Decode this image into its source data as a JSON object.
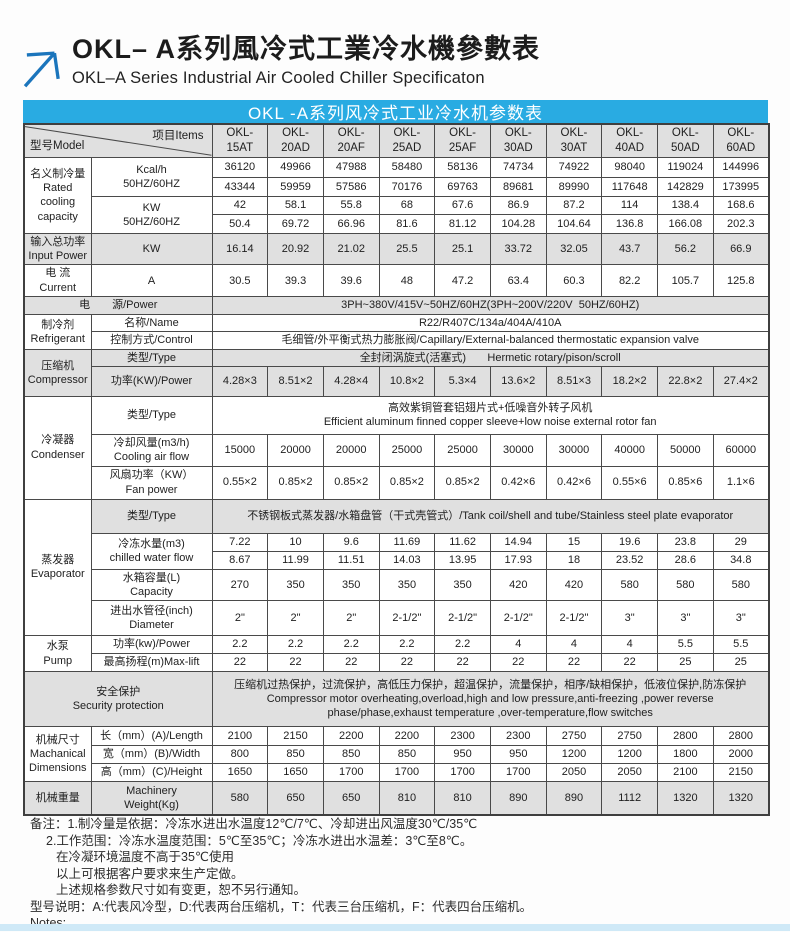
{
  "page": {
    "title_zh": "OKL– A系列風冷式工業冷水機參數表",
    "title_en": "OKL–A Series Industrial Air Cooled Chiller Specificaton",
    "accent_blue": "#29abe2",
    "arrow_blue": "#1b75bc",
    "cell_gray": "#e0e0e0",
    "bottom_bar_color": "#cfe9f7",
    "logo_icon": "arrow-up-right-icon"
  },
  "table": {
    "banner": "OKL -A系列风冷式工业冷水机参数表",
    "corner": {
      "model": "型号Model",
      "items": "项目Items"
    },
    "models": [
      "OKL-15AT",
      "OKL-20AD",
      "OKL-20AF",
      "OKL-25AD",
      "OKL-25AF",
      "OKL-30AD",
      "OKL-30AT",
      "OKL-40AD",
      "OKL-50AD",
      "OKL-60AD"
    ],
    "rows": [
      {
        "h": 30,
        "c": [
          {
            "corner": true,
            "cs": 2,
            "g": 1
          },
          {
            "t": "OKL-\n15AT",
            "k": "m",
            "g": 1
          },
          {
            "t": "OKL-\n20AD",
            "k": "m",
            "g": 1
          },
          {
            "t": "OKL-\n20AF",
            "k": "m",
            "g": 1
          },
          {
            "t": "OKL-\n25AD",
            "k": "m",
            "g": 1
          },
          {
            "t": "OKL-\n25AF",
            "k": "m",
            "g": 1
          },
          {
            "t": "OKL-\n30AD",
            "k": "m",
            "g": 1
          },
          {
            "t": "OKL-\n30AT",
            "k": "m",
            "g": 1
          },
          {
            "t": "OKL-\n40AD",
            "k": "m",
            "g": 1
          },
          {
            "t": "OKL-\n50AD",
            "k": "m",
            "g": 1
          },
          {
            "t": "OKL-\n60AD",
            "k": "m",
            "g": 1
          }
        ]
      },
      {
        "h": 20,
        "c": [
          {
            "t": "名义制冷量\nRated\ncooling\ncapacity",
            "k": "l",
            "rs": 4
          },
          {
            "t": "Kcal/h\n50HZ/60HZ",
            "k": "l",
            "rs": 2
          },
          {
            "t": "36120"
          },
          {
            "t": "49966"
          },
          {
            "t": "47988"
          },
          {
            "t": "58480"
          },
          {
            "t": "58136"
          },
          {
            "t": "74734"
          },
          {
            "t": "74922"
          },
          {
            "t": "98040"
          },
          {
            "t": "119024"
          },
          {
            "t": "144996"
          }
        ]
      },
      {
        "h": 19,
        "c": [
          {
            "t": "43344"
          },
          {
            "t": "59959"
          },
          {
            "t": "57586"
          },
          {
            "t": "70176"
          },
          {
            "t": "69763"
          },
          {
            "t": "89681"
          },
          {
            "t": "89990"
          },
          {
            "t": "117648"
          },
          {
            "t": "142829"
          },
          {
            "t": "173995"
          }
        ]
      },
      {
        "h": 18,
        "c": [
          {
            "t": "KW\n50HZ/60HZ",
            "k": "l",
            "rs": 2
          },
          {
            "t": "42"
          },
          {
            "t": "58.1"
          },
          {
            "t": "55.8"
          },
          {
            "t": "68"
          },
          {
            "t": "67.6"
          },
          {
            "t": "86.9"
          },
          {
            "t": "87.2"
          },
          {
            "t": "114"
          },
          {
            "t": "138.4"
          },
          {
            "t": "168.6"
          }
        ]
      },
      {
        "h": 19,
        "c": [
          {
            "t": "50.4"
          },
          {
            "t": "69.72"
          },
          {
            "t": "66.96"
          },
          {
            "t": "81.6"
          },
          {
            "t": "81.12"
          },
          {
            "t": "104.28"
          },
          {
            "t": "104.64"
          },
          {
            "t": "136.8"
          },
          {
            "t": "166.08"
          },
          {
            "t": "202.3"
          }
        ]
      },
      {
        "h": 30,
        "c": [
          {
            "t": "输入总功率\nInput Power",
            "k": "l",
            "g": 1
          },
          {
            "t": "KW",
            "k": "l",
            "g": 1
          },
          {
            "t": "16.14",
            "g": 1
          },
          {
            "t": "20.92",
            "g": 1
          },
          {
            "t": "21.02",
            "g": 1
          },
          {
            "t": "25.5",
            "g": 1
          },
          {
            "t": "25.1",
            "g": 1
          },
          {
            "t": "33.72",
            "g": 1
          },
          {
            "t": "32.05",
            "g": 1
          },
          {
            "t": "43.7",
            "g": 1
          },
          {
            "t": "56.2",
            "g": 1
          },
          {
            "t": "66.9",
            "g": 1
          }
        ]
      },
      {
        "h": 30,
        "c": [
          {
            "t": "电 流\nCurrent",
            "k": "l"
          },
          {
            "t": "A",
            "k": "l"
          },
          {
            "t": "30.5"
          },
          {
            "t": "39.3"
          },
          {
            "t": "39.6"
          },
          {
            "t": "48"
          },
          {
            "t": "47.2"
          },
          {
            "t": "63.4"
          },
          {
            "t": "60.3"
          },
          {
            "t": "82.2"
          },
          {
            "t": "105.7"
          },
          {
            "t": "125.8"
          }
        ]
      },
      {
        "h": 18,
        "c": [
          {
            "t": "电　　源/Power",
            "k": "l",
            "cs": 2,
            "g": 1
          },
          {
            "t": "3PH~380V/415V~50HZ/60HZ(3PH~200V/220V  50HZ/60HZ)",
            "cs": 10,
            "g": 1
          }
        ]
      },
      {
        "h": 17,
        "c": [
          {
            "t": "制冷剂\nRefrigerant",
            "k": "l",
            "rs": 2
          },
          {
            "t": "名称/Name",
            "k": "l"
          },
          {
            "t": "R22/R407C/134a/404A/410A",
            "cs": 10
          }
        ]
      },
      {
        "h": 17,
        "c": [
          {
            "t": "控制方式/Control",
            "k": "l"
          },
          {
            "t": "毛细管/外平衡式热力膨胀阀/Capillary/External-balanced thermostatic expansion valve",
            "cs": 10
          }
        ]
      },
      {
        "h": 17,
        "c": [
          {
            "t": "压缩机\nCompressor",
            "k": "l",
            "rs": 2,
            "g": 1
          },
          {
            "t": "类型/Type",
            "k": "l",
            "g": 1
          },
          {
            "t": "全封闭涡旋式(活塞式)       Hermetic rotary/pison/scroll",
            "cs": 10,
            "g": 1
          }
        ]
      },
      {
        "h": 30,
        "c": [
          {
            "t": "功率(KW)/Power",
            "k": "l",
            "g": 1
          },
          {
            "t": "4.28×3",
            "g": 1
          },
          {
            "t": "8.51×2",
            "g": 1
          },
          {
            "t": "4.28×4",
            "g": 1
          },
          {
            "t": "10.8×2",
            "g": 1
          },
          {
            "t": "5.3×4",
            "g": 1
          },
          {
            "t": "13.6×2",
            "g": 1
          },
          {
            "t": "8.51×3",
            "g": 1
          },
          {
            "t": "18.2×2",
            "g": 1
          },
          {
            "t": "22.8×2",
            "g": 1
          },
          {
            "t": "27.4×2",
            "g": 1
          }
        ]
      },
      {
        "h": 38,
        "c": [
          {
            "t": "冷凝器\nCondenser",
            "k": "l",
            "rs": 3
          },
          {
            "t": "类型/Type",
            "k": "l"
          },
          {
            "t": "高效紫铜管套铝翅片式+低噪音外转子风机\nEfficient aluminum finned copper sleeve+low noise external rotor fan",
            "cs": 10
          }
        ]
      },
      {
        "h": 30,
        "c": [
          {
            "t": "冷却风量(m3/h)\nCooling air flow",
            "k": "l"
          },
          {
            "t": "15000"
          },
          {
            "t": "20000"
          },
          {
            "t": "20000"
          },
          {
            "t": "25000"
          },
          {
            "t": "25000"
          },
          {
            "t": "30000"
          },
          {
            "t": "30000"
          },
          {
            "t": "40000"
          },
          {
            "t": "50000"
          },
          {
            "t": "60000"
          }
        ]
      },
      {
        "h": 33,
        "c": [
          {
            "t": "风扇功率（KW）\nFan power",
            "k": "l"
          },
          {
            "t": "0.55×2"
          },
          {
            "t": "0.85×2"
          },
          {
            "t": "0.85×2"
          },
          {
            "t": "0.85×2"
          },
          {
            "t": "0.85×2"
          },
          {
            "t": "0.42×6"
          },
          {
            "t": "0.42×6"
          },
          {
            "t": "0.55×6"
          },
          {
            "t": "0.85×6"
          },
          {
            "t": "1.1×6"
          }
        ]
      },
      {
        "h": 34,
        "c": [
          {
            "t": "蒸发器\nEvaporator",
            "k": "l",
            "rs": 5
          },
          {
            "t": "类型/Type",
            "k": "l",
            "g": 1
          },
          {
            "t": "不锈钢板式蒸发器/水箱盘管（干式壳管式）/Tank coil/shell and tube/Stainless steel plate evaporator",
            "cs": 10,
            "g": 1
          }
        ]
      },
      {
        "h": 18,
        "c": [
          {
            "t": "冷冻水量(m3)\nchilled water flow",
            "k": "l",
            "rs": 2
          },
          {
            "t": "7.22"
          },
          {
            "t": "10"
          },
          {
            "t": "9.6"
          },
          {
            "t": "11.69"
          },
          {
            "t": "11.62"
          },
          {
            "t": "14.94"
          },
          {
            "t": "15"
          },
          {
            "t": "19.6"
          },
          {
            "t": "23.8"
          },
          {
            "t": "29"
          }
        ]
      },
      {
        "h": 18,
        "c": [
          {
            "t": "8.67"
          },
          {
            "t": "11.99"
          },
          {
            "t": "11.51"
          },
          {
            "t": "14.03"
          },
          {
            "t": "13.95"
          },
          {
            "t": "17.93"
          },
          {
            "t": "18"
          },
          {
            "t": "23.52"
          },
          {
            "t": "28.6"
          },
          {
            "t": "34.8"
          }
        ]
      },
      {
        "h": 30,
        "c": [
          {
            "t": "水箱容量(L)\nCapacity",
            "k": "l"
          },
          {
            "t": "270"
          },
          {
            "t": "350"
          },
          {
            "t": "350"
          },
          {
            "t": "350"
          },
          {
            "t": "350"
          },
          {
            "t": "420"
          },
          {
            "t": "420"
          },
          {
            "t": "580"
          },
          {
            "t": "580"
          },
          {
            "t": "580"
          }
        ]
      },
      {
        "h": 35,
        "c": [
          {
            "t": "进出水管径(inch)\nDiameter",
            "k": "l"
          },
          {
            "t": "2\""
          },
          {
            "t": "2\""
          },
          {
            "t": "2\""
          },
          {
            "t": "2-1/2\""
          },
          {
            "t": "2-1/2\""
          },
          {
            "t": "2-1/2\""
          },
          {
            "t": "2-1/2\""
          },
          {
            "t": "3\""
          },
          {
            "t": "3\""
          },
          {
            "t": "3\""
          }
        ]
      },
      {
        "h": 18,
        "c": [
          {
            "t": "水泵\nPump",
            "k": "l",
            "rs": 2
          },
          {
            "t": "功率(kw)/Power",
            "k": "l"
          },
          {
            "t": "2.2"
          },
          {
            "t": "2.2"
          },
          {
            "t": "2.2"
          },
          {
            "t": "2.2"
          },
          {
            "t": "2.2"
          },
          {
            "t": "4"
          },
          {
            "t": "4"
          },
          {
            "t": "4"
          },
          {
            "t": "5.5"
          },
          {
            "t": "5.5"
          }
        ]
      },
      {
        "h": 18,
        "c": [
          {
            "t": "最高扬程(m)Max-lift",
            "k": "l"
          },
          {
            "t": "22"
          },
          {
            "t": "22"
          },
          {
            "t": "22"
          },
          {
            "t": "22"
          },
          {
            "t": "22"
          },
          {
            "t": "22"
          },
          {
            "t": "22"
          },
          {
            "t": "22"
          },
          {
            "t": "25"
          },
          {
            "t": "25"
          }
        ]
      },
      {
        "h": 55,
        "c": [
          {
            "t": "安全保护\nSecurity protection",
            "k": "l",
            "cs": 2,
            "g": 1
          },
          {
            "t": "压缩机过热保护，过流保护，高低压力保护，超温保护，流量保护，相序/缺相保护，低液位保护,防冻保护\nCompressor motor overheating,overload,high and low pressure,anti-freezing ,power reverse\nphase/phase,exhaust temperature ,over-temperature,flow switches",
            "cs": 10,
            "g": 1
          }
        ]
      },
      {
        "h": 19,
        "c": [
          {
            "t": "机械尺寸\nMachanical\nDimensions",
            "k": "l",
            "rs": 3
          },
          {
            "t": "长（mm）(A)/Length",
            "k": "l"
          },
          {
            "t": "2100"
          },
          {
            "t": "2150"
          },
          {
            "t": "2200"
          },
          {
            "t": "2200"
          },
          {
            "t": "2300"
          },
          {
            "t": "2300"
          },
          {
            "t": "2750"
          },
          {
            "t": "2750"
          },
          {
            "t": "2800"
          },
          {
            "t": "2800"
          }
        ]
      },
      {
        "h": 18,
        "c": [
          {
            "t": "宽（mm）(B)/Width",
            "k": "l"
          },
          {
            "t": "800"
          },
          {
            "t": "850"
          },
          {
            "t": "850"
          },
          {
            "t": "850"
          },
          {
            "t": "950"
          },
          {
            "t": "950"
          },
          {
            "t": "1200"
          },
          {
            "t": "1200"
          },
          {
            "t": "1800"
          },
          {
            "t": "2000"
          }
        ]
      },
      {
        "h": 18,
        "c": [
          {
            "t": "高（mm）(C)/Height",
            "k": "l"
          },
          {
            "t": "1650"
          },
          {
            "t": "1650"
          },
          {
            "t": "1700"
          },
          {
            "t": "1700"
          },
          {
            "t": "1700"
          },
          {
            "t": "1700"
          },
          {
            "t": "2050"
          },
          {
            "t": "2050"
          },
          {
            "t": "2100"
          },
          {
            "t": "2150"
          }
        ]
      },
      {
        "h": 33,
        "c": [
          {
            "t": "机械重量",
            "k": "l",
            "g": 1
          },
          {
            "t": "Machinery\nWeight(Kg)",
            "k": "l",
            "g": 1
          },
          {
            "t": "580",
            "g": 1
          },
          {
            "t": "650",
            "g": 1
          },
          {
            "t": "650",
            "g": 1
          },
          {
            "t": "810",
            "g": 1
          },
          {
            "t": "810",
            "g": 1
          },
          {
            "t": "890",
            "g": 1
          },
          {
            "t": "890",
            "g": 1
          },
          {
            "t": "1112",
            "g": 1
          },
          {
            "t": "1320",
            "g": 1
          },
          {
            "t": "1320",
            "g": 1
          }
        ]
      }
    ]
  },
  "notes": {
    "lines": [
      {
        "text": "备注：1.制冷量是依据：冷冻水进出水温度12℃/7℃、冷却进出风温度30℃/35℃",
        "indent": 0
      },
      {
        "text": "2.工作范围：冷冻水温度范围：5℃至35℃；冷冻水进出水温差：3℃至8℃。",
        "indent": 1
      },
      {
        "text": "在冷凝环境温度不高于35℃使用",
        "indent": 2
      },
      {
        "text": "以上可根据客户要求来生产定做。",
        "indent": 2
      },
      {
        "text": "上述规格参数尺寸如有变更，恕不另行通知。",
        "indent": 2
      },
      {
        "text": "型号说明：A:代表风冷型，D:代表两台压缩机，T：代表三台压缩机，F：代表四台压缩机。",
        "indent": 0
      },
      {
        "text": "Notes:",
        "indent": 0
      }
    ]
  }
}
